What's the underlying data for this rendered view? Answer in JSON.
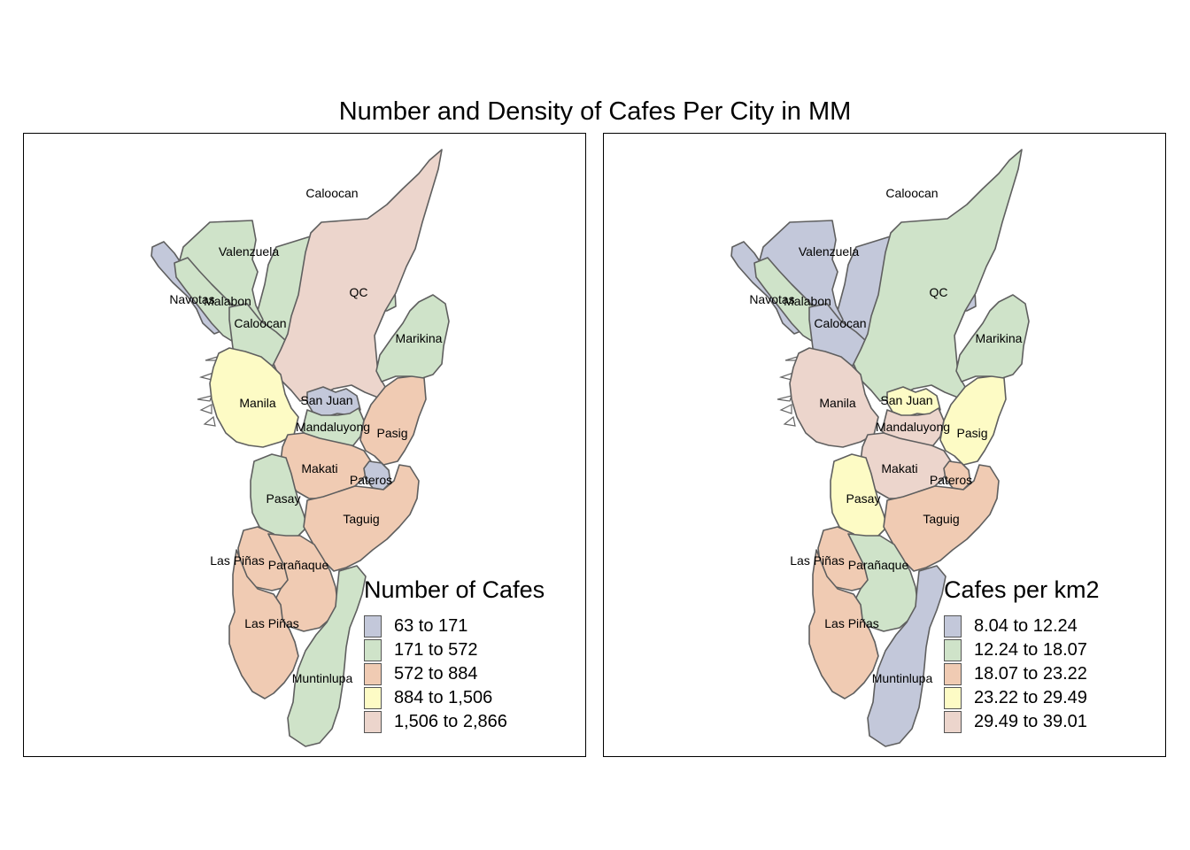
{
  "title": "Number and Density of Cafes Per City in MM",
  "colors": {
    "c1": "#c3c8da",
    "c2": "#cfe3c9",
    "c3": "#f0cbb3",
    "c4": "#fdfbc5",
    "c5": "#ecd5cc"
  },
  "maps": [
    {
      "legend_title": "Number of Cafes",
      "legend": [
        {
          "label": "63 to 171",
          "class": "c1"
        },
        {
          "label": "171 to 572",
          "class": "c2"
        },
        {
          "label": "572 to 884",
          "class": "c3"
        },
        {
          "label": "884 to 1,506",
          "class": "c4"
        },
        {
          "label": "1,506 to 2,866",
          "class": "c5"
        }
      ],
      "classes": {
        "Caloocan North": "c2",
        "Valenzuela": "c2",
        "Navotas": "c1",
        "Malabon": "c2",
        "Caloocan South": "c2",
        "QC": "c5",
        "Marikina": "c2",
        "Manila": "c4",
        "San Juan": "c1",
        "Mandaluyong": "c2",
        "Pasig": "c3",
        "Makati": "c3",
        "Pateros": "c1",
        "Pasay": "c2",
        "Taguig": "c3",
        "Parañaque": "c3",
        "Las Piñas": "c3",
        "Muntinlupa": "c2"
      }
    },
    {
      "legend_title": "Cafes per km2",
      "legend": [
        {
          "label": "8.04 to 12.24",
          "class": "c1"
        },
        {
          "label": "12.24 to 18.07",
          "class": "c2"
        },
        {
          "label": "18.07 to 23.22",
          "class": "c3"
        },
        {
          "label": "23.22 to 29.49",
          "class": "c4"
        },
        {
          "label": "29.49 to 39.01",
          "class": "c5"
        }
      ],
      "classes": {
        "Caloocan North": "c1",
        "Valenzuela": "c1",
        "Navotas": "c1",
        "Malabon": "c2",
        "Caloocan South": "c1",
        "QC": "c2",
        "Marikina": "c2",
        "Manila": "c5",
        "San Juan": "c4",
        "Mandaluyong": "c5",
        "Pasig": "c4",
        "Makati": "c5",
        "Pateros": "c3",
        "Pasay": "c4",
        "Taguig": "c3",
        "Parañaque": "c2",
        "Las Piñas": "c3",
        "Muntinlupa": "c1"
      }
    }
  ],
  "city_labels": [
    "Caloocan",
    "Valenzuela",
    "Navotas",
    "Malabon",
    "Caloocan",
    "QC",
    "Marikina",
    "Manila",
    "San Juan",
    "Mandaluyong",
    "Pasig",
    "Makati",
    "Pateros",
    "Pasay",
    "Taguig",
    "Las Piñas",
    "Parañaque",
    "Las Piñas",
    "Muntinlupa"
  ]
}
